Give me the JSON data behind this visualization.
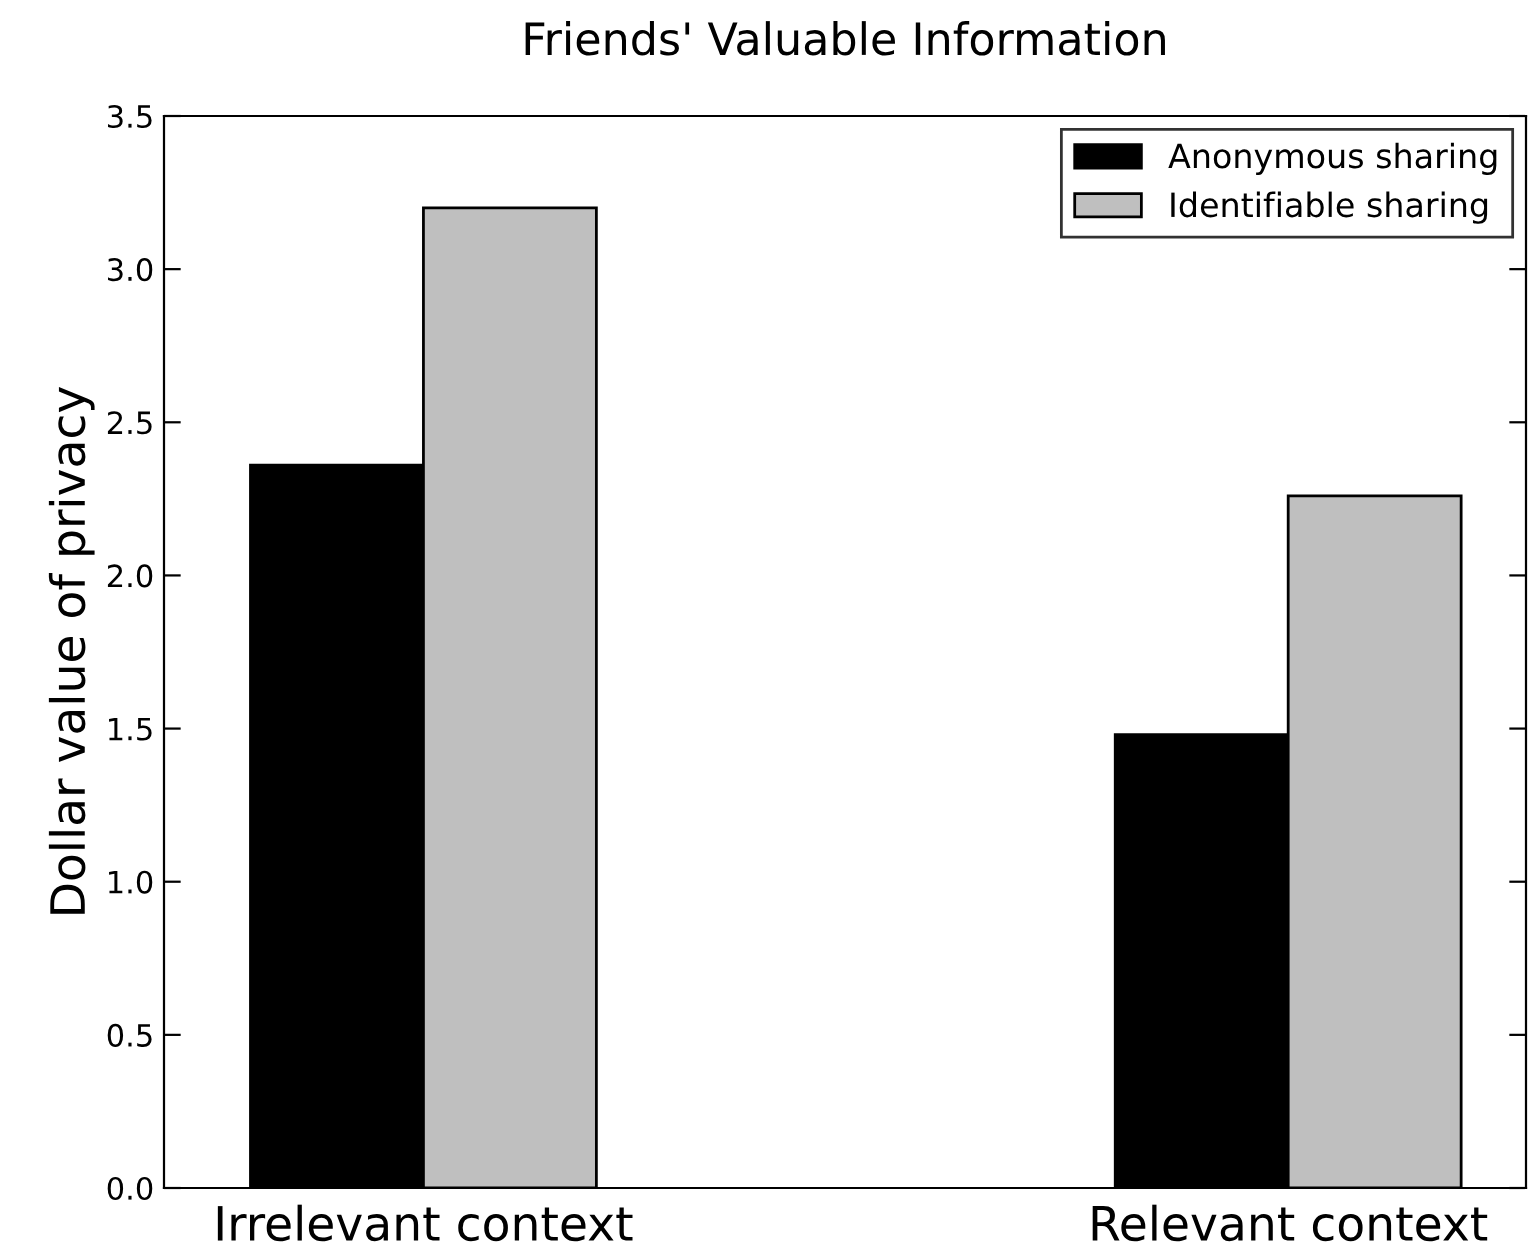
{
  "chart_data": {
    "type": "bar",
    "title": "Friends' Valuable Information",
    "ylabel": "Dollar value of privacy",
    "categories": [
      "Irrelevant context",
      "Relevant context"
    ],
    "series": [
      {
        "name": "Anonymous sharing",
        "color": "#000000",
        "values": [
          2.36,
          1.48
        ]
      },
      {
        "name": "Identifiable sharing",
        "color": "#bfbfbf",
        "values": [
          3.2,
          2.26
        ]
      }
    ],
    "ylim": [
      0,
      3.5
    ],
    "yticks": [
      {
        "value": 0,
        "label": "0.0"
      },
      0.5,
      {
        "value": 1,
        "label": "1.0"
      },
      1.5,
      {
        "value": 2,
        "label": "2.0"
      },
      2.5,
      {
        "value": 3,
        "label": "3.0"
      },
      3.5
    ],
    "grid": false,
    "legend": "top right"
  }
}
